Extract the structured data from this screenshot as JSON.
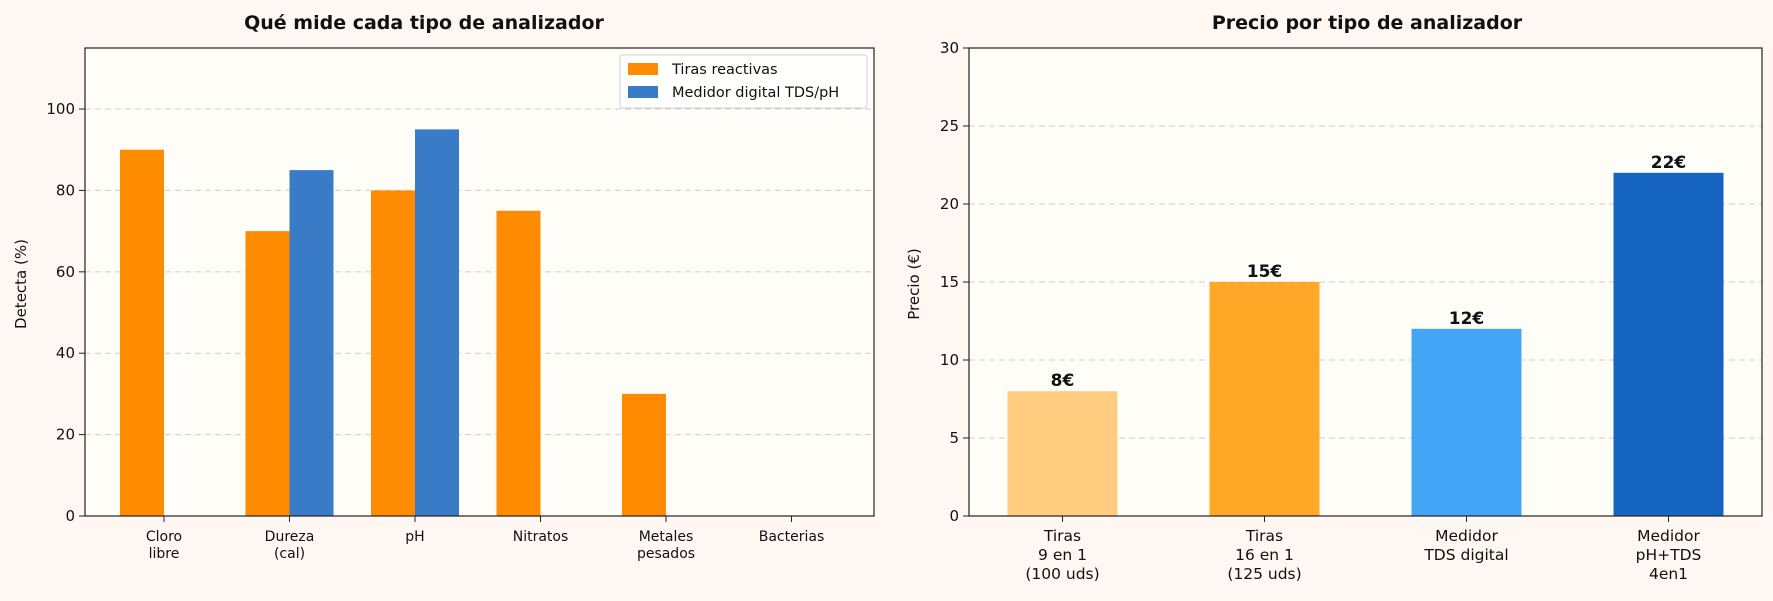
{
  "chart_data": [
    {
      "type": "bar",
      "title": "Qué mide cada tipo de analizador",
      "xlabel": "",
      "ylabel": "Detecta (%)",
      "ylim": [
        0,
        115
      ],
      "yticks": [
        0,
        20,
        40,
        60,
        80,
        100
      ],
      "grid": "y, dashed",
      "legend": "top-right",
      "categories": [
        [
          "Cloro",
          "libre"
        ],
        [
          "Dureza",
          "(cal)"
        ],
        [
          "pH"
        ],
        [
          "Nitratos"
        ],
        [
          "Metales",
          "pesados"
        ],
        [
          "Bacterias"
        ]
      ],
      "series": [
        {
          "name": "Tiras reactivas",
          "color": "#ff8c00",
          "values": [
            90,
            70,
            80,
            75,
            30,
            0
          ]
        },
        {
          "name": "Medidor digital TDS/pH",
          "color": "#3a7bc8",
          "values": [
            0,
            85,
            95,
            0,
            0,
            0
          ]
        }
      ]
    },
    {
      "type": "bar",
      "title": "Precio por tipo de analizador",
      "xlabel": "",
      "ylabel": "Precio (€)",
      "ylim": [
        0,
        30
      ],
      "yticks": [
        0,
        5,
        10,
        15,
        20,
        25,
        30
      ],
      "grid": "y, dashed",
      "categories": [
        [
          "Tiras",
          "9 en 1",
          "(100 uds)"
        ],
        [
          "Tiras",
          "16 en 1",
          "(125 uds)"
        ],
        [
          "Medidor",
          "TDS digital"
        ],
        [
          "Medidor",
          "pH+TDS",
          "4en1"
        ]
      ],
      "values": [
        8,
        15,
        12,
        22
      ],
      "data_labels": [
        "8€",
        "15€",
        "12€",
        "22€"
      ],
      "colors": [
        "#ffcc80",
        "#ffa726",
        "#42a5f5",
        "#1565c0"
      ]
    }
  ]
}
